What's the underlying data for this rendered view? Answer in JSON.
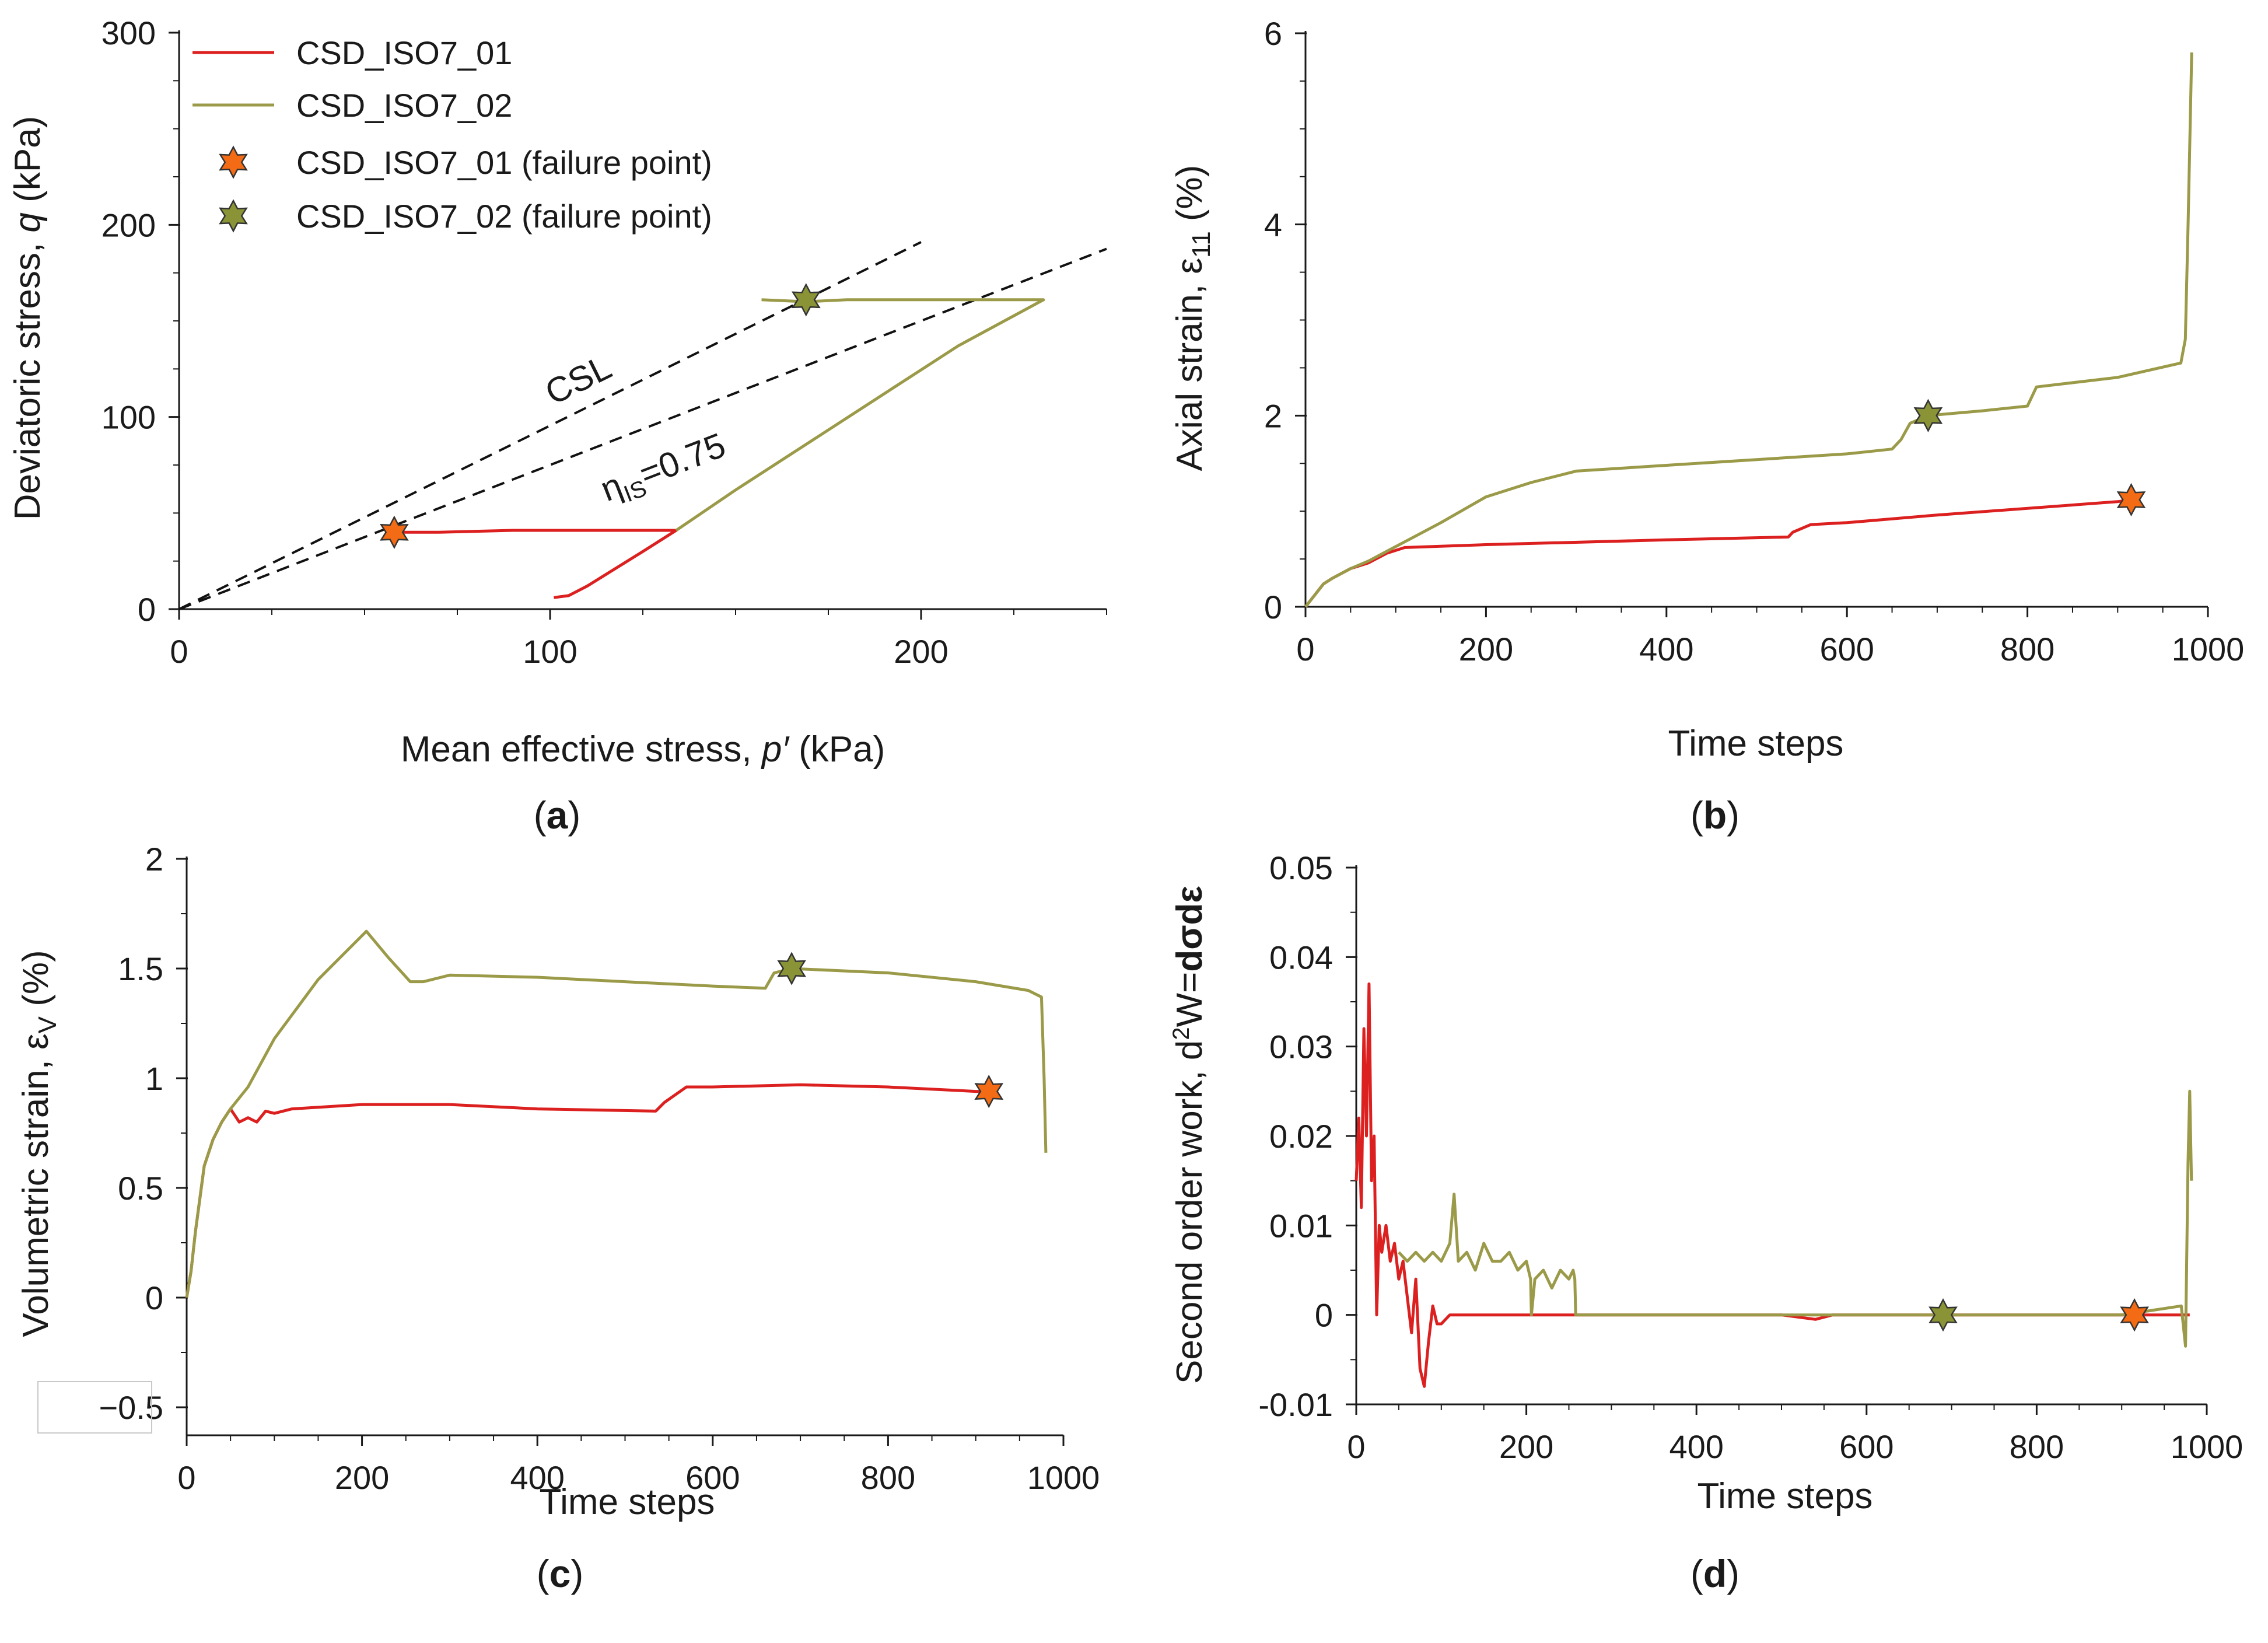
{
  "colors": {
    "series_01": "#dc2020",
    "series_02": "#9a9a48",
    "marker_01": "#f36b14",
    "marker_02": "#8a9436",
    "axis": "#1a1a1a",
    "reference_line": "#111111"
  },
  "chart_data": [
    {
      "id": "a",
      "type": "line",
      "panel_label_open": "(",
      "panel_label_letter": "a",
      "panel_label_close": ")",
      "xlabel_prefix": "Mean effective stress, ",
      "xlabel_italic": "p′",
      "xlabel_suffix": " (kPa)",
      "ylabel_prefix": "Deviatoric stress, ",
      "ylabel_italic": "q",
      "ylabel_suffix": " (kPa)",
      "xlim": [
        0,
        250
      ],
      "ylim": [
        0,
        300
      ],
      "xticks": [
        0,
        100,
        200
      ],
      "yticks": [
        0,
        100,
        200,
        300
      ],
      "xtick_labels": [
        "0",
        "100",
        "200"
      ],
      "ytick_labels": [
        "0",
        "100",
        "200",
        "300"
      ],
      "legend": {
        "position": "top-left",
        "entries": [
          "CSD_ISO7_01",
          "CSD_ISO7_02",
          "CSD_ISO7_01 (failure point)",
          "CSD_ISO7_02 (failure point)"
        ]
      },
      "reference_lines": [
        {
          "name": "CSL",
          "label": "CSL",
          "slope": 0.955,
          "x_end": 200
        },
        {
          "name": "instability-line",
          "label_prefix": "η",
          "label_sub": "IS",
          "label_suffix": "=0.75",
          "slope": 0.75,
          "x_end": 250
        }
      ],
      "series": [
        {
          "name": "CSD_ISO7_01",
          "x": [
            101,
            105,
            110,
            115,
            120,
            125,
            134,
            110,
            90,
            70,
            58
          ],
          "y": [
            6,
            7,
            12,
            18,
            24,
            30,
            41,
            41,
            41,
            40,
            40
          ]
        },
        {
          "name": "CSD_ISO7_02",
          "x": [
            134,
            150,
            170,
            190,
            210,
            233,
            200,
            180,
            169,
            157
          ],
          "y": [
            41,
            62,
            87,
            112,
            137,
            161,
            161,
            161,
            160,
            161
          ]
        }
      ],
      "failure_points": [
        {
          "name": "CSD_ISO7_01 (failure point)",
          "x": 58,
          "y": 40
        },
        {
          "name": "CSD_ISO7_02 (failure point)",
          "x": 169,
          "y": 161
        }
      ]
    },
    {
      "id": "b",
      "type": "line",
      "panel_label_open": "(",
      "panel_label_letter": "b",
      "panel_label_close": ")",
      "xlabel": "Time steps",
      "ylabel_prefix": "Axial strain, ε",
      "ylabel_sub": "11",
      "ylabel_suffix": " (%)",
      "xlim": [
        0,
        1000
      ],
      "ylim": [
        0,
        6
      ],
      "xticks": [
        0,
        200,
        400,
        600,
        800,
        1000
      ],
      "yticks": [
        0,
        2,
        4,
        6
      ],
      "xtick_labels": [
        "0",
        "200",
        "400",
        "600",
        "800",
        "1000"
      ],
      "ytick_labels": [
        "0",
        "2",
        "4",
        "6"
      ],
      "series": [
        {
          "name": "CSD_ISO7_01",
          "x": [
            0,
            5,
            10,
            20,
            30,
            50,
            70,
            90,
            110,
            200,
            400,
            535,
            540,
            560,
            600,
            700,
            900,
            915
          ],
          "y": [
            0,
            0.06,
            0.12,
            0.24,
            0.3,
            0.4,
            0.46,
            0.56,
            0.62,
            0.65,
            0.7,
            0.73,
            0.78,
            0.86,
            0.88,
            0.96,
            1.1,
            1.12
          ]
        },
        {
          "name": "CSD_ISO7_02",
          "x": [
            0,
            5,
            10,
            20,
            30,
            50,
            70,
            90,
            110,
            150,
            200,
            250,
            300,
            400,
            500,
            600,
            650,
            660,
            670,
            690,
            750,
            800,
            810,
            900,
            970,
            975,
            978,
            982
          ],
          "y": [
            0,
            0.06,
            0.12,
            0.24,
            0.3,
            0.4,
            0.48,
            0.58,
            0.68,
            0.88,
            1.15,
            1.3,
            1.42,
            1.48,
            1.54,
            1.6,
            1.65,
            1.75,
            1.92,
            2.0,
            2.05,
            2.1,
            2.3,
            2.4,
            2.55,
            2.8,
            4.0,
            5.8
          ]
        }
      ],
      "failure_points": [
        {
          "name": "CSD_ISO7_01 (failure point)",
          "x": 915,
          "y": 1.12
        },
        {
          "name": "CSD_ISO7_02 (failure point)",
          "x": 690,
          "y": 2.0
        }
      ]
    },
    {
      "id": "c",
      "type": "line",
      "panel_label_open": "(",
      "panel_label_letter": "c",
      "panel_label_close": ")",
      "xlabel": "Time steps",
      "ylabel_prefix": "Volumetric strain, ε",
      "ylabel_sub": "V",
      "ylabel_suffix": " (%)",
      "xlim": [
        0,
        1000
      ],
      "ylim": [
        -0.5,
        2
      ],
      "xticks": [
        0,
        200,
        400,
        600,
        800,
        1000
      ],
      "yticks": [
        -0.5,
        0,
        0.5,
        1,
        1.5,
        2
      ],
      "xtick_labels": [
        "0",
        "200",
        "400",
        "600",
        "800",
        "1000"
      ],
      "ytick_labels": [
        "−0.5",
        "0",
        "0.5",
        "1",
        "1.5",
        "2"
      ],
      "series": [
        {
          "name": "CSD_ISO7_01",
          "x": [
            0,
            5,
            10,
            20,
            30,
            40,
            50,
            55,
            60,
            70,
            80,
            90,
            100,
            120,
            200,
            300,
            400,
            535,
            545,
            570,
            600,
            700,
            800,
            900,
            915
          ],
          "y": [
            0,
            0.12,
            0.3,
            0.6,
            0.72,
            0.8,
            0.86,
            0.83,
            0.8,
            0.82,
            0.8,
            0.85,
            0.84,
            0.86,
            0.88,
            0.88,
            0.86,
            0.85,
            0.89,
            0.96,
            0.96,
            0.97,
            0.96,
            0.94,
            0.94
          ]
        },
        {
          "name": "CSD_ISO7_02",
          "x": [
            0,
            5,
            10,
            20,
            30,
            40,
            50,
            70,
            100,
            150,
            205,
            230,
            255,
            270,
            300,
            400,
            500,
            600,
            660,
            670,
            690,
            800,
            900,
            960,
            970,
            975,
            978,
            980
          ],
          "y": [
            0,
            0.12,
            0.3,
            0.6,
            0.72,
            0.8,
            0.86,
            0.96,
            1.18,
            1.45,
            1.67,
            1.55,
            1.44,
            1.44,
            1.47,
            1.46,
            1.44,
            1.42,
            1.41,
            1.48,
            1.5,
            1.48,
            1.44,
            1.4,
            1.38,
            1.37,
            1.0,
            0.66
          ]
        }
      ],
      "failure_points": [
        {
          "name": "CSD_ISO7_01 (failure point)",
          "x": 915,
          "y": 0.94
        },
        {
          "name": "CSD_ISO7_02 (failure point)",
          "x": 690,
          "y": 1.5
        }
      ]
    },
    {
      "id": "d",
      "type": "line",
      "panel_label_open": "(",
      "panel_label_letter": "d",
      "panel_label_close": ")",
      "xlabel": "Time steps",
      "ylabel_prefix": "Second order work, d",
      "ylabel_sup": "2",
      "ylabel_mid": "W=",
      "ylabel_bold": "dσdε",
      "xlim": [
        0,
        1000
      ],
      "ylim": [
        -0.01,
        0.05
      ],
      "xticks": [
        0,
        200,
        400,
        600,
        800,
        1000
      ],
      "yticks": [
        -0.01,
        0,
        0.01,
        0.02,
        0.03,
        0.04,
        0.05
      ],
      "xtick_labels": [
        "0",
        "200",
        "400",
        "600",
        "800",
        "1000"
      ],
      "ytick_labels": [
        "-0.01",
        "0",
        "0.01",
        "0.02",
        "0.03",
        "0.04",
        "0.05"
      ],
      "series": [
        {
          "name": "CSD_ISO7_01",
          "x": [
            0,
            3,
            6,
            9,
            12,
            15,
            18,
            21,
            24,
            27,
            30,
            35,
            40,
            45,
            50,
            55,
            60,
            65,
            70,
            75,
            80,
            85,
            90,
            95,
            100,
            110,
            130,
            200,
            300,
            500,
            540,
            560,
            600,
            800,
            915,
            980
          ],
          "y": [
            0.015,
            0.022,
            0.012,
            0.032,
            0.02,
            0.037,
            0.015,
            0.02,
            0.0,
            0.01,
            0.007,
            0.01,
            0.006,
            0.008,
            0.004,
            0.006,
            0.002,
            -0.002,
            0.004,
            -0.006,
            -0.008,
            -0.003,
            0.001,
            -0.001,
            -0.001,
            0.0,
            0.0,
            0.0,
            0.0,
            0.0,
            -0.0005,
            0.0,
            0.0,
            0.0,
            0.0,
            0.0
          ]
        },
        {
          "name": "CSD_ISO7_02",
          "x": [
            50,
            60,
            70,
            80,
            90,
            100,
            110,
            115,
            120,
            130,
            140,
            150,
            160,
            170,
            180,
            190,
            200,
            205,
            206,
            210,
            220,
            230,
            240,
            250,
            255,
            257,
            258,
            300,
            600,
            690,
            900,
            970,
            975,
            978,
            980,
            982
          ],
          "y": [
            0.007,
            0.006,
            0.007,
            0.006,
            0.007,
            0.006,
            0.008,
            0.0135,
            0.006,
            0.007,
            0.005,
            0.008,
            0.006,
            0.006,
            0.007,
            0.005,
            0.006,
            0.004,
            0.0,
            0.004,
            0.005,
            0.003,
            0.005,
            0.004,
            0.005,
            0.004,
            0.0,
            0.0,
            0.0,
            0.0,
            0.0,
            0.001,
            -0.0035,
            0.017,
            0.025,
            0.015
          ]
        }
      ],
      "failure_points": [
        {
          "name": "CSD_ISO7_01 (failure point)",
          "x": 915,
          "y": 0.0
        },
        {
          "name": "CSD_ISO7_02 (failure point)",
          "x": 690,
          "y": 0.0
        }
      ]
    }
  ]
}
